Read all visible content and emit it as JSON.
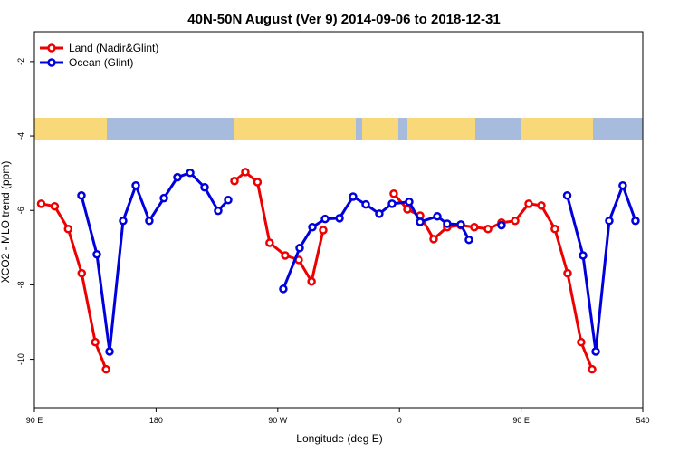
{
  "chart_data": {
    "type": "line",
    "title": "40N-50N August (Ver 9)   2014-09-06 to 2018-12-31",
    "x_label": "Longitude (deg E)",
    "y_label": "XCO2 - MLO trend (ppm)",
    "xlim": [
      90,
      540
    ],
    "ylim": [
      -11.3,
      -1.2
    ],
    "xticks": [
      {
        "value": 90,
        "label": "90 E"
      },
      180,
      {
        "value": 270,
        "label": "90 W"
      },
      {
        "value": 360,
        "label": "0"
      },
      {
        "value": 450,
        "label": "90 E"
      },
      540
    ],
    "yticks": [
      -2,
      -4,
      -6,
      -8,
      -10
    ],
    "legend": "top-left",
    "series": [
      {
        "name": "Land (Nadir&Glint)",
        "color": "#ee0000",
        "x": [
          95,
          105,
          115,
          125,
          135,
          143,
          null,
          238,
          246,
          255,
          264,
          275.5,
          285.5,
          295,
          303.6,
          null,
          355.8,
          365.9,
          375.3,
          385.3,
          395.3,
          405.4,
          415.4,
          425.5,
          435.5,
          445.6,
          455.6,
          465,
          475,
          484.4,
          494.4,
          502.5
        ],
        "values": [
          -5.82,
          -5.89,
          -6.5,
          -7.69,
          -9.54,
          -10.27,
          null,
          -5.21,
          -4.97,
          -5.24,
          -6.87,
          -7.21,
          -7.33,
          -7.91,
          -6.53,
          null,
          -5.55,
          -5.97,
          -6.14,
          -6.77,
          -6.45,
          -6.4,
          -6.45,
          -6.5,
          -6.33,
          -6.28,
          -5.82,
          -5.87,
          -6.5,
          -7.69,
          -9.54,
          -10.27
        ]
      },
      {
        "name": "Ocean (Glint)",
        "color": "#0000dd",
        "x": [
          124.8,
          136.2,
          145.6,
          155.6,
          165,
          175,
          185.8,
          195.8,
          205.2,
          215.9,
          225.9,
          233.3,
          null,
          274.1,
          286.2,
          295.6,
          305,
          315.7,
          325.7,
          335.1,
          345.1,
          354.5,
          367.2,
          375.3,
          388,
          395.3,
          405.4,
          411.4,
          null,
          435.5,
          null,
          484.1,
          495.8,
          505.2,
          515.2,
          525.2,
          534.6
        ],
        "values": [
          -5.6,
          -7.18,
          -9.79,
          -6.28,
          -5.33,
          -6.28,
          -5.67,
          -5.11,
          -4.99,
          -5.38,
          -6.01,
          -5.72,
          null,
          -8.11,
          -7.01,
          -6.45,
          -6.23,
          -6.21,
          -5.63,
          -5.84,
          -6.09,
          -5.82,
          -5.77,
          -6.31,
          -6.16,
          -6.36,
          -6.38,
          -6.79,
          null,
          -6.4,
          null,
          -5.6,
          -7.21,
          -9.79,
          -6.28,
          -5.33,
          -6.28
        ]
      }
    ]
  }
}
